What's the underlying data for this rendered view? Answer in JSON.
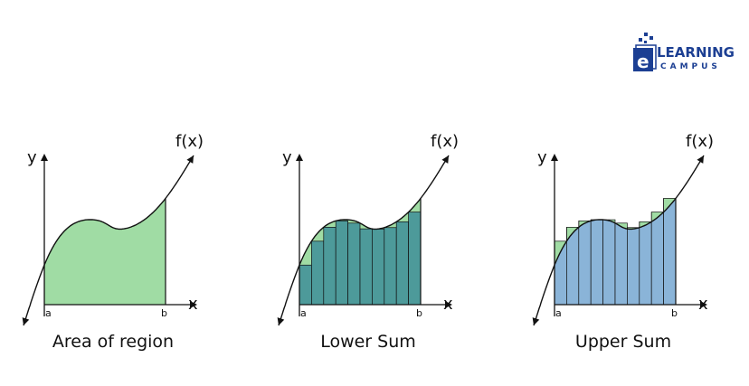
{
  "logo": {
    "letter": "e",
    "line1": "LEARNING",
    "line2": "CAMPUS",
    "color": "#1c3f93"
  },
  "colors": {
    "area_fill": "#a0dca4",
    "lower_fill": "#4d9a9a",
    "upper_fill": "#8ab4d8",
    "excess_fill": "#a0dca4",
    "curve": "#111111"
  },
  "panels": [
    {
      "id": "area",
      "caption": "Area of region",
      "function_label": "f(x)",
      "y_label": "y",
      "x_label": "x",
      "a_label": "a",
      "b_label": "b"
    },
    {
      "id": "lower",
      "caption": "Lower Sum",
      "function_label": "f(x)",
      "y_label": "y",
      "x_label": "x",
      "a_label": "a",
      "b_label": "b",
      "rectangles": 10
    },
    {
      "id": "upper",
      "caption": "Upper Sum",
      "function_label": "f(x)",
      "y_label": "y",
      "x_label": "x",
      "a_label": "a",
      "b_label": "b",
      "rectangles": 10
    }
  ]
}
